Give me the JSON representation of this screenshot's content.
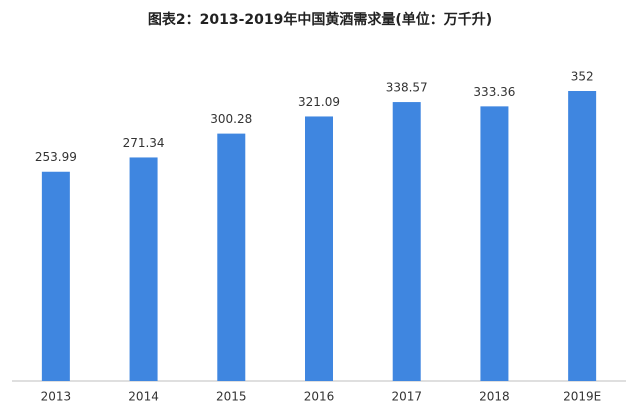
{
  "chart_data": {
    "type": "bar",
    "title": "图表2：2013-2019年中国黄酒需求量(单位：万千升)",
    "categories": [
      "2013",
      "2014",
      "2015",
      "2016",
      "2017",
      "2018",
      "2019E"
    ],
    "values": [
      253.99,
      271.34,
      300.28,
      321.09,
      338.57,
      333.36,
      352
    ],
    "color": "#3f86e0"
  }
}
